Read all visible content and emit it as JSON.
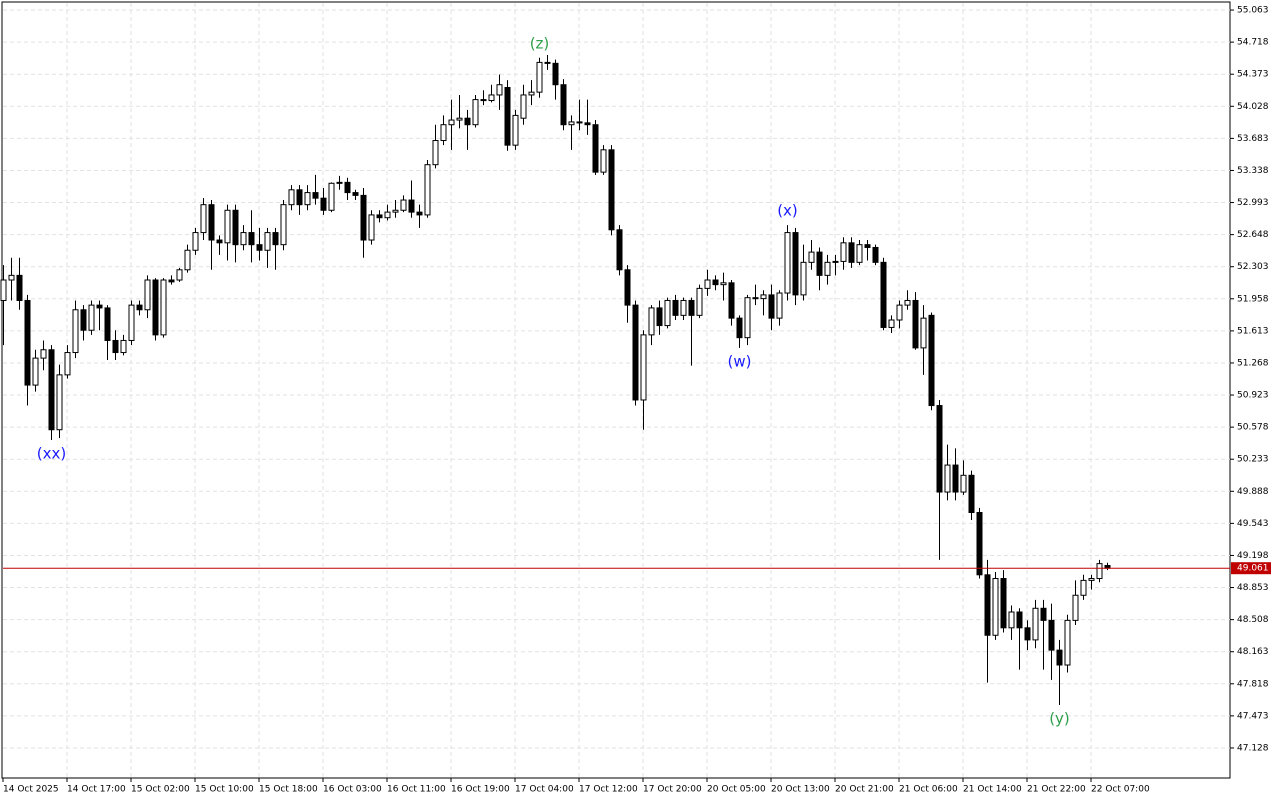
{
  "chart_data": {
    "type": "candlestick",
    "categories": [
      "14 Oct 2025",
      null,
      null,
      null,
      null,
      null,
      null,
      null,
      "14 Oct 17:00",
      null,
      null,
      null,
      null,
      null,
      null,
      null,
      "15 Oct 02:00",
      null,
      null,
      null,
      null,
      null,
      null,
      null,
      "15 Oct 10:00",
      null,
      null,
      null,
      null,
      null,
      null,
      null,
      "15 Oct 18:00",
      null,
      null,
      null,
      null,
      null,
      null,
      null,
      "16 Oct 03:00",
      null,
      null,
      null,
      null,
      null,
      null,
      null,
      "16 Oct 11:00",
      null,
      null,
      null,
      null,
      null,
      null,
      null,
      "16 Oct 19:00",
      null,
      null,
      null,
      null,
      null,
      null,
      null,
      "17 Oct 04:00",
      null,
      null,
      null,
      null,
      null,
      null,
      null,
      "17 Oct 12:00",
      null,
      null,
      null,
      null,
      null,
      null,
      null,
      "17 Oct 20:00",
      null,
      null,
      null,
      null,
      null,
      null,
      null,
      "20 Oct 05:00",
      null,
      null,
      null,
      null,
      null,
      null,
      null,
      "20 Oct 13:00",
      null,
      null,
      null,
      null,
      null,
      null,
      null,
      "20 Oct 21:00",
      null,
      null,
      null,
      null,
      null,
      null,
      null,
      "21 Oct 06:00",
      null,
      null,
      null,
      null,
      null,
      null,
      null,
      "21 Oct 14:00",
      null,
      null,
      null,
      null,
      null,
      null,
      null,
      "21 Oct 22:00",
      null,
      null,
      null,
      null,
      null,
      null,
      null,
      "22 Oct 07:00",
      null,
      null
    ],
    "open": [
      51.94,
      52.16,
      52.21,
      51.94,
      51.03,
      51.32,
      51.41,
      50.55,
      51.14,
      51.38,
      51.84,
      51.62,
      51.89,
      51.86,
      51.51,
      51.38,
      51.51,
      51.89,
      51.84,
      52.16,
      51.57,
      52.16,
      52.16,
      52.27,
      52.48,
      52.67,
      52.97,
      52.59,
      52.56,
      52.91,
      52.54,
      52.67,
      52.54,
      52.48,
      52.67,
      52.54,
      52.97,
      53.13,
      52.97,
      53.1,
      53.04,
      52.91,
      53.2,
      53.21,
      53.1,
      53.07,
      52.59,
      52.86,
      52.83,
      52.89,
      52.91,
      53.02,
      52.89,
      52.86,
      53.4,
      53.66,
      53.83,
      53.88,
      53.9,
      53.83,
      54.1,
      54.09,
      54.15,
      54.23,
      53.61,
      53.9,
      54.15,
      54.18,
      54.5,
      54.49,
      54.26,
      53.83,
      53.86,
      53.85,
      53.83,
      53.32,
      53.56,
      52.7,
      52.27,
      51.89,
      50.87,
      51.57,
      51.86,
      51.67,
      51.94,
      51.78,
      51.94,
      51.78,
      52.07,
      52.16,
      52.11,
      52.13,
      51.75,
      51.54,
      51.97,
      51.96,
      52.0,
      51.75,
      52.02,
      52.67,
      52.0,
      52.35,
      52.46,
      52.21,
      52.35,
      52.36,
      52.56,
      52.35,
      52.54,
      52.51,
      52.35,
      51.65,
      51.73,
      51.89,
      51.94,
      51.43,
      51.78,
      50.81,
      49.88,
      50.17,
      49.88,
      50.06,
      49.66,
      48.99,
      48.34,
      48.95,
      48.42,
      48.59,
      48.42,
      48.29,
      48.63,
      48.5,
      48.18,
      48.02,
      48.5,
      48.77,
      48.93,
      48.95,
      49.09
    ],
    "high": [
      52.32,
      52.4,
      52.4,
      52.0,
      51.41,
      51.51,
      51.46,
      51.25,
      51.46,
      51.94,
      51.89,
      51.94,
      51.94,
      51.89,
      51.62,
      51.57,
      51.94,
      51.94,
      52.21,
      52.18,
      52.18,
      52.21,
      52.29,
      52.54,
      52.72,
      53.04,
      53.02,
      52.64,
      52.97,
      52.97,
      52.75,
      52.91,
      52.72,
      52.72,
      52.72,
      53.02,
      53.18,
      53.18,
      53.18,
      53.29,
      53.15,
      53.21,
      53.28,
      53.26,
      53.13,
      53.15,
      52.91,
      52.91,
      52.97,
      53.02,
      53.07,
      53.23,
      52.97,
      53.45,
      53.83,
      53.93,
      54.1,
      54.15,
      53.99,
      54.15,
      54.2,
      54.26,
      54.37,
      54.31,
      53.99,
      54.26,
      54.31,
      54.55,
      54.58,
      54.53,
      54.32,
      53.93,
      54.1,
      54.1,
      53.88,
      53.61,
      53.61,
      52.75,
      52.32,
      51.94,
      51.62,
      51.89,
      51.94,
      51.97,
      52.0,
      51.97,
      51.97,
      52.11,
      52.27,
      52.21,
      52.24,
      52.16,
      51.78,
      52.0,
      52.11,
      52.05,
      52.11,
      52.05,
      52.75,
      52.72,
      52.54,
      52.59,
      52.51,
      52.43,
      52.43,
      52.62,
      52.62,
      52.59,
      52.59,
      52.54,
      52.4,
      51.78,
      51.94,
      52.05,
      52.03,
      51.89,
      51.81,
      50.87,
      50.39,
      50.35,
      50.22,
      50.11,
      49.71,
      49.15,
      49.02,
      49.04,
      48.66,
      48.63,
      48.5,
      48.72,
      48.72,
      48.68,
      48.29,
      48.56,
      48.93,
      48.99,
      48.99,
      49.15,
      49.12
    ],
    "low": [
      51.46,
      51.94,
      51.84,
      50.81,
      50.96,
      51.19,
      50.44,
      50.46,
      51.1,
      51.32,
      51.51,
      51.57,
      51.62,
      51.3,
      51.3,
      51.35,
      51.46,
      51.78,
      51.75,
      51.51,
      51.54,
      52.11,
      52.14,
      52.24,
      52.43,
      52.59,
      52.27,
      52.43,
      52.37,
      52.35,
      52.48,
      52.35,
      52.37,
      52.29,
      52.27,
      52.48,
      52.91,
      52.86,
      52.91,
      52.97,
      52.86,
      52.89,
      53.13,
      53.02,
      53.02,
      52.4,
      52.54,
      52.78,
      52.8,
      52.83,
      52.89,
      52.83,
      52.72,
      52.83,
      53.36,
      53.61,
      53.56,
      53.79,
      53.56,
      53.8,
      54.04,
      54.07,
      53.99,
      53.55,
      53.56,
      53.83,
      54.04,
      54.12,
      54.42,
      54.1,
      53.77,
      53.56,
      53.77,
      53.72,
      53.29,
      53.29,
      52.64,
      52.21,
      51.7,
      50.81,
      50.55,
      51.46,
      51.57,
      51.64,
      51.73,
      51.73,
      51.24,
      51.75,
      51.99,
      52.05,
      51.94,
      51.67,
      51.43,
      51.46,
      51.89,
      51.78,
      51.62,
      51.67,
      51.94,
      51.89,
      51.94,
      52.27,
      52.05,
      52.11,
      52.21,
      52.27,
      52.29,
      52.32,
      52.37,
      52.32,
      51.62,
      51.59,
      51.64,
      51.84,
      51.41,
      51.14,
      50.76,
      49.15,
      49.79,
      49.79,
      49.85,
      49.58,
      48.95,
      47.83,
      48.29,
      48.37,
      48.29,
      47.97,
      48.18,
      48.2,
      47.97,
      47.86,
      47.59,
      47.94,
      48.45,
      48.72,
      48.83,
      48.91,
      49.04
    ],
    "close": [
      52.16,
      52.21,
      51.94,
      51.03,
      51.32,
      51.41,
      50.55,
      51.14,
      51.38,
      51.84,
      51.62,
      51.89,
      51.86,
      51.51,
      51.38,
      51.51,
      51.89,
      51.84,
      52.16,
      51.57,
      52.16,
      52.14,
      52.27,
      52.48,
      52.67,
      52.97,
      52.59,
      52.56,
      52.91,
      52.54,
      52.67,
      52.54,
      52.48,
      52.67,
      52.54,
      52.97,
      53.13,
      52.97,
      53.1,
      53.04,
      52.91,
      53.2,
      53.21,
      53.1,
      53.07,
      52.59,
      52.86,
      52.83,
      52.89,
      52.91,
      53.02,
      52.89,
      52.86,
      53.4,
      53.66,
      53.83,
      53.88,
      53.9,
      53.83,
      54.1,
      54.09,
      54.15,
      54.26,
      53.61,
      53.93,
      54.15,
      54.18,
      54.5,
      54.49,
      54.26,
      53.83,
      53.86,
      53.85,
      53.83,
      53.32,
      53.56,
      52.7,
      52.27,
      51.89,
      50.87,
      51.57,
      51.86,
      51.67,
      51.94,
      51.78,
      51.94,
      51.78,
      52.07,
      52.16,
      52.11,
      52.13,
      51.75,
      51.54,
      51.97,
      51.96,
      52.0,
      51.75,
      52.02,
      52.67,
      52.0,
      52.35,
      52.46,
      52.21,
      52.35,
      52.36,
      52.56,
      52.35,
      52.54,
      52.51,
      52.35,
      51.65,
      51.73,
      51.89,
      51.94,
      51.43,
      51.75,
      50.81,
      49.88,
      50.17,
      49.88,
      50.06,
      49.66,
      48.99,
      48.34,
      48.95,
      48.42,
      48.59,
      48.42,
      48.29,
      48.63,
      48.5,
      48.18,
      48.02,
      48.5,
      48.77,
      48.93,
      48.95,
      49.11,
      49.061
    ],
    "ylim": [
      46.805,
      55.171
    ],
    "yticks": [
      55.063,
      54.718,
      54.373,
      54.028,
      53.683,
      53.338,
      52.993,
      52.648,
      52.303,
      51.958,
      51.613,
      51.268,
      50.923,
      50.578,
      50.233,
      49.888,
      49.543,
      49.198,
      48.853,
      48.508,
      48.163,
      47.818,
      47.473,
      47.128
    ],
    "grid": true,
    "up_color": "#ffffff",
    "down_color": "#000000",
    "last_price": 49.061,
    "last_price_color": "#c00000",
    "annotations": [
      {
        "text": "(xx)",
        "color": "#1a1aff"
      },
      {
        "text": "(z)",
        "color": "#2e9e4a"
      },
      {
        "text": "(w)",
        "color": "#1a1aff"
      },
      {
        "text": "(x)",
        "color": "#1a1aff"
      },
      {
        "text": "(y)",
        "color": "#2e9e4a"
      }
    ]
  }
}
